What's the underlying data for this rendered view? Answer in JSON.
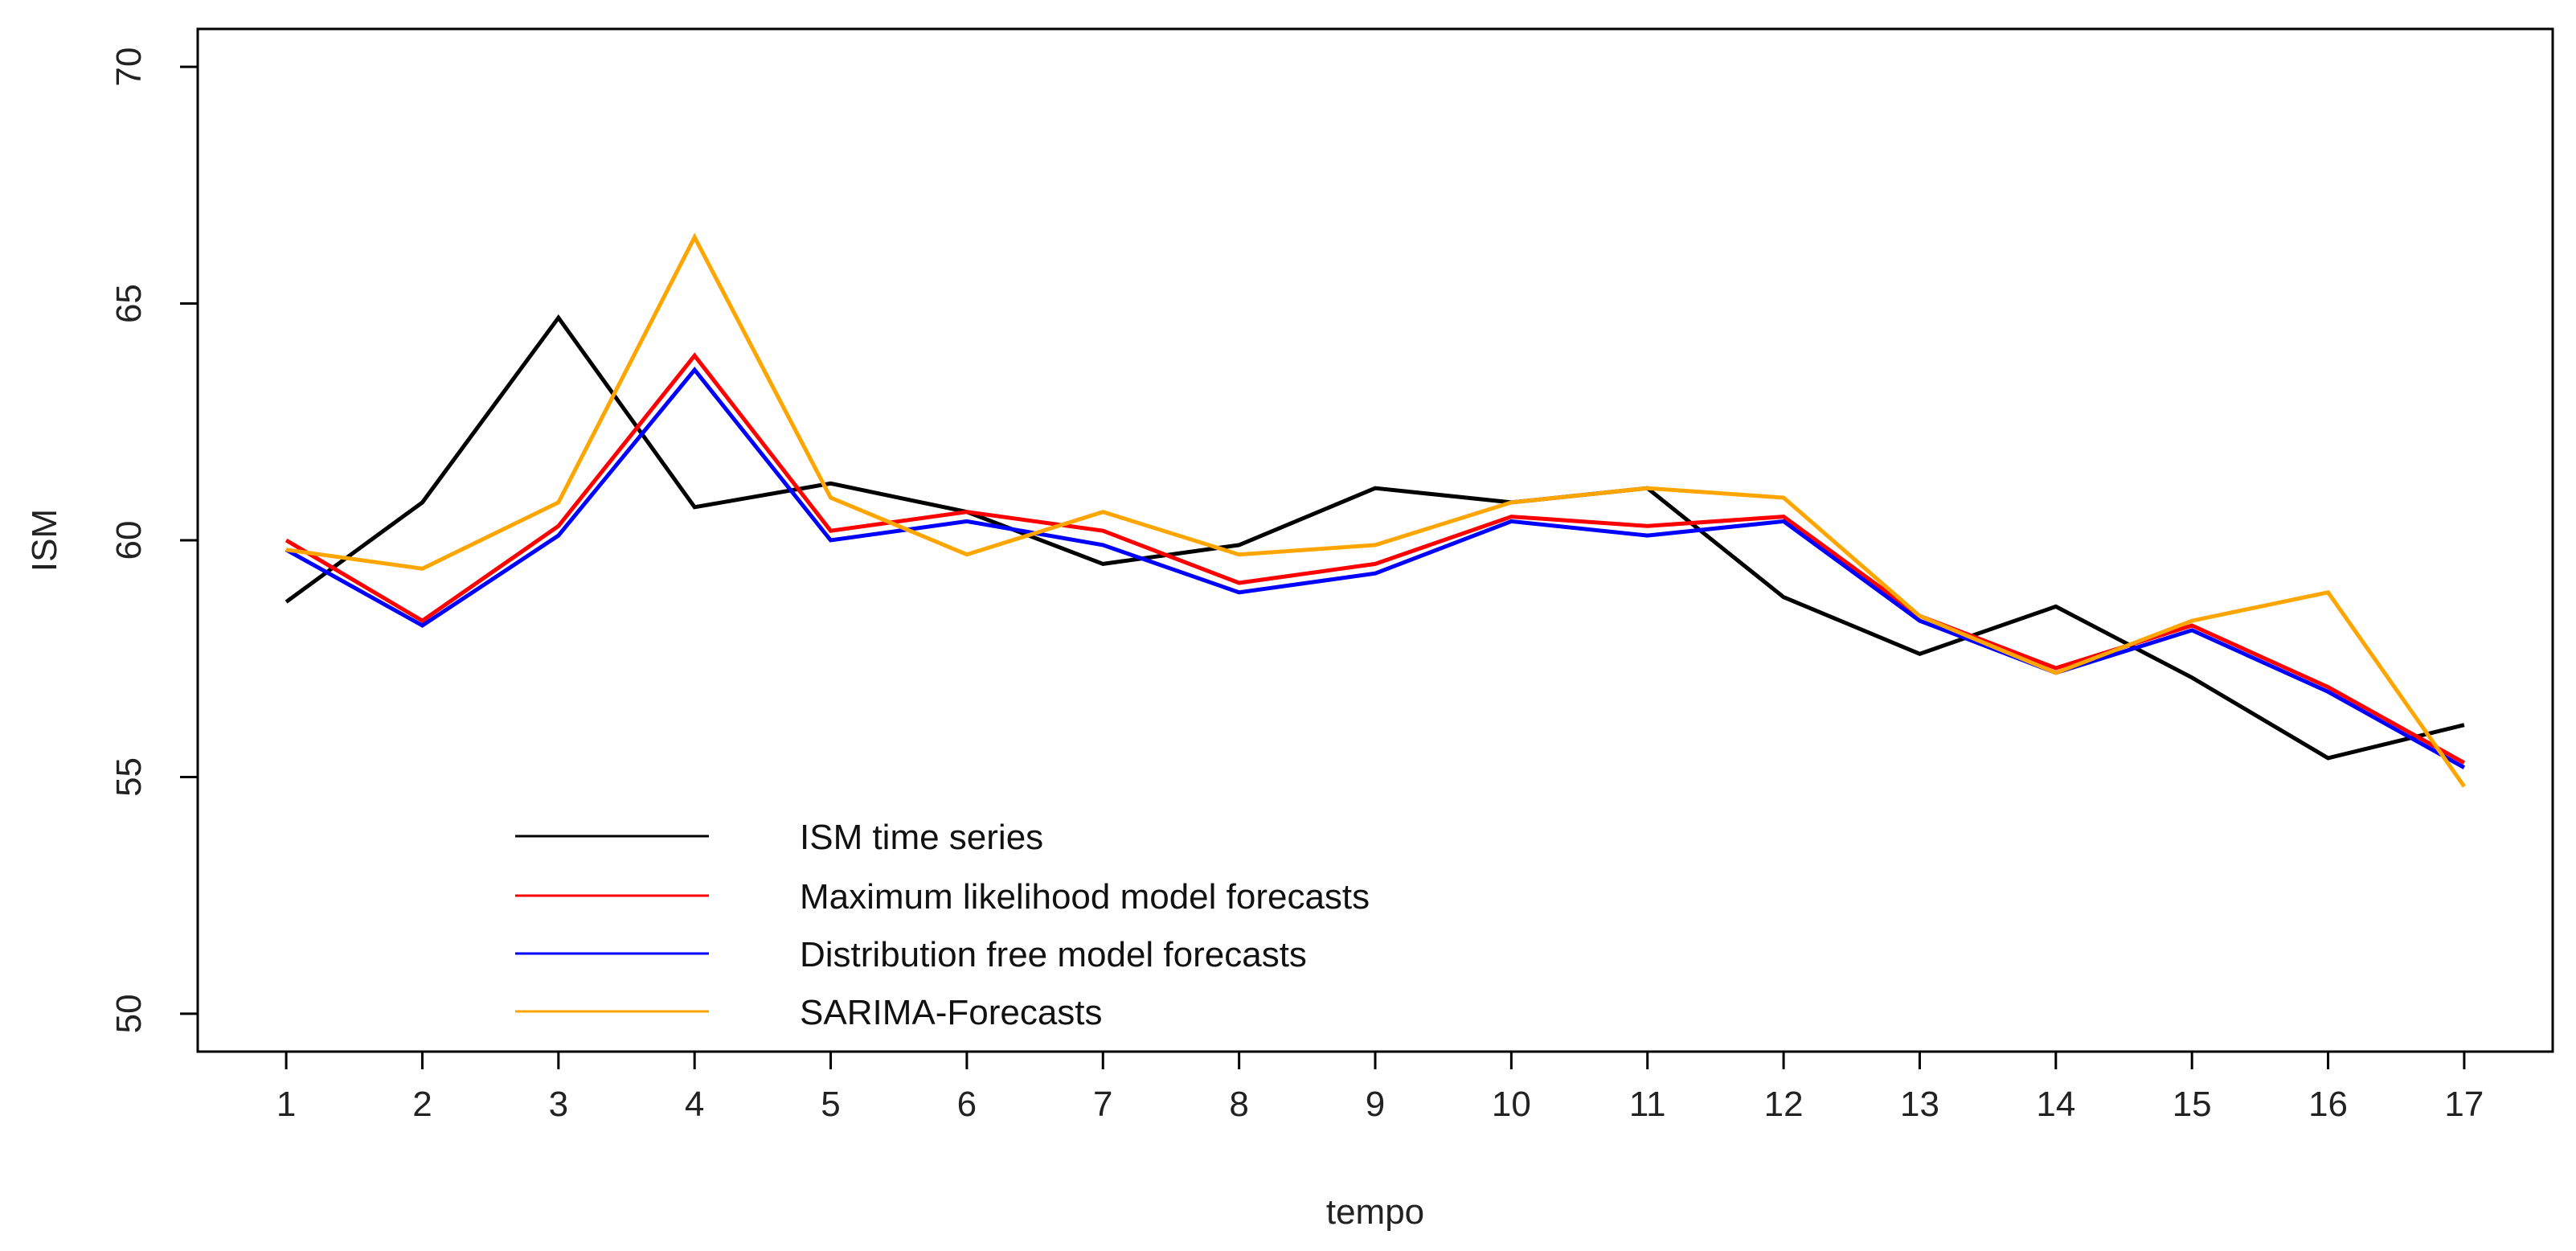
{
  "chart_data": {
    "type": "line",
    "title": "",
    "xlabel": "tempo",
    "ylabel": "ISM",
    "x": [
      1,
      2,
      3,
      4,
      5,
      6,
      7,
      8,
      9,
      10,
      11,
      12,
      13,
      14,
      15,
      16,
      17
    ],
    "x_tick_labels": [
      "1",
      "2",
      "3",
      "4",
      "5",
      "6",
      "7",
      "8",
      "9",
      "10",
      "11",
      "12",
      "13",
      "14",
      "15",
      "16",
      "17"
    ],
    "y_ticks": [
      50,
      55,
      60,
      65,
      70
    ],
    "y_tick_labels": [
      "50",
      "55",
      "60",
      "65",
      "70"
    ],
    "xlim": [
      0.35,
      17.65
    ],
    "ylim": [
      49.2,
      70.8
    ],
    "grid": false,
    "legend_position": "bottom-left",
    "series": [
      {
        "name": "ISM time series",
        "color": "#000000",
        "values": [
          58.7,
          60.8,
          64.7,
          60.7,
          61.2,
          60.6,
          59.5,
          59.9,
          61.1,
          60.8,
          61.1,
          58.8,
          57.6,
          58.6,
          57.1,
          55.4,
          56.1
        ]
      },
      {
        "name": "Maximum likelihood model forecasts",
        "color": "#ff0000",
        "values": [
          60.0,
          58.3,
          60.3,
          63.9,
          60.2,
          60.6,
          60.2,
          59.1,
          59.5,
          60.5,
          60.3,
          60.5,
          58.4,
          57.3,
          58.2,
          56.9,
          55.3
        ]
      },
      {
        "name": "Distribution free model forecasts",
        "color": "#0000ff",
        "values": [
          59.8,
          58.2,
          60.1,
          63.6,
          60.0,
          60.4,
          59.9,
          58.9,
          59.3,
          60.4,
          60.1,
          60.4,
          58.3,
          57.2,
          58.1,
          56.8,
          55.2
        ]
      },
      {
        "name": "SARIMA-Forecasts",
        "color": "#ffa500",
        "values": [
          59.8,
          59.4,
          60.8,
          66.4,
          60.9,
          59.7,
          60.6,
          59.7,
          59.9,
          60.8,
          61.1,
          60.9,
          58.4,
          57.2,
          58.3,
          58.9,
          54.8
        ]
      }
    ]
  }
}
